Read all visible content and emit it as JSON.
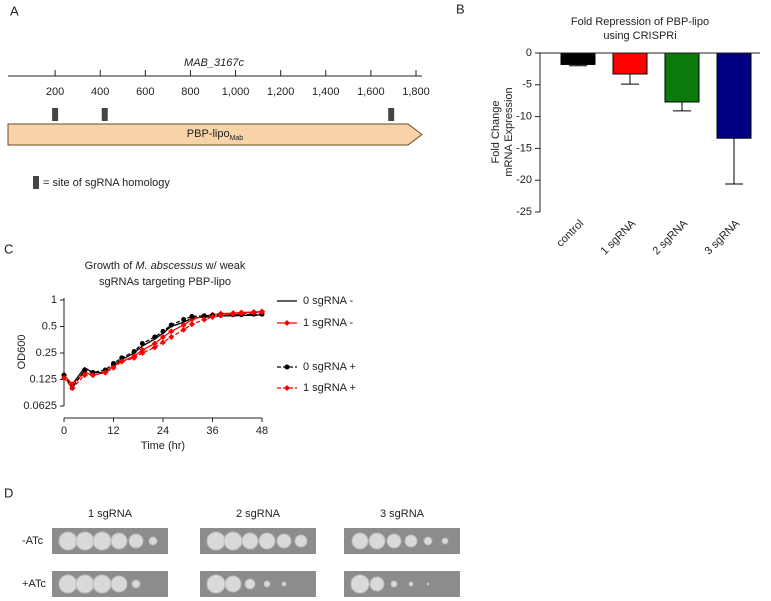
{
  "panel_labels": [
    "A",
    "B",
    "C",
    "D"
  ],
  "chart_data": [
    {
      "type": "gene_map",
      "title": "MAB_3167c",
      "xlim": [
        0,
        1800
      ],
      "xticks": [
        200,
        400,
        600,
        800,
        {
          "value": 1000,
          "label": "1,000"
        },
        {
          "value": 1200,
          "label": "1,200"
        },
        {
          "value": 1400,
          "label": "1,400"
        },
        {
          "value": 1600,
          "label": "1,600"
        },
        {
          "value": 1800,
          "label": "1,800"
        }
      ],
      "gene_label": "PBP-lipo",
      "gene_label_subscript": "Mab",
      "gene_color": "#f8d3a8",
      "sites": [
        200,
        420,
        1690
      ],
      "site_color": "#444",
      "legend": "= site of sgRNA homology"
    },
    {
      "type": "bar",
      "title": [
        "Fold Repression of PBP-lipo",
        "using CRISPRi"
      ],
      "y_label": [
        "Fold Change",
        "mRNA Expression"
      ],
      "categories": [
        "control",
        "1 sgRNA",
        "2 sgRNA",
        "3 sgRNA"
      ],
      "values": [
        -1.8,
        -3.3,
        -7.7,
        -13.4
      ],
      "errors": [
        0.2,
        1.6,
        1.4,
        7.2
      ],
      "colors": [
        "#000000",
        "#ff0000",
        "#0a7a0a",
        "#000080"
      ],
      "ylim": [
        -25,
        0
      ],
      "yticks": [
        0,
        -5,
        -10,
        -15,
        -20,
        -25
      ]
    },
    {
      "type": "line",
      "title_lines": [
        [
          {
            "text": "Growth of "
          },
          {
            "text": "M. abscessus",
            "italic": true
          },
          {
            "text": " w/ weak"
          }
        ],
        [
          {
            "text": "sgRNAs targeting PBP-lipo"
          }
        ]
      ],
      "x_label": "Time (hr)",
      "y_label": "OD600",
      "log_scale_y": true,
      "x": [
        0,
        2,
        5,
        7,
        10,
        12,
        14,
        17,
        19,
        22,
        24,
        26,
        29,
        31,
        34,
        36,
        38,
        41,
        43,
        46,
        48
      ],
      "xlim": [
        0,
        48
      ],
      "xticks": [
        0,
        12,
        24,
        36,
        48
      ],
      "ylim": [
        0.0625,
        1
      ],
      "yticks": [
        0.0625,
        0.125,
        0.25,
        0.5,
        1
      ],
      "series": [
        {
          "name": "0 sgRNA -",
          "color": "#000000",
          "dashed": false,
          "marker": "none",
          "values": [
            0.14,
            0.11,
            0.17,
            0.15,
            0.15,
            0.18,
            0.21,
            0.25,
            0.3,
            0.36,
            0.42,
            0.5,
            0.56,
            0.62,
            0.64,
            0.65,
            0.66,
            0.66,
            0.67,
            0.67,
            0.68
          ]
        },
        {
          "name": "1 sgRNA -",
          "color": "#ff0000",
          "dashed": false,
          "marker": "diamond",
          "values": [
            0.14,
            0.11,
            0.15,
            0.14,
            0.15,
            0.18,
            0.2,
            0.23,
            0.27,
            0.32,
            0.38,
            0.44,
            0.52,
            0.6,
            0.66,
            0.68,
            0.7,
            0.71,
            0.72,
            0.73,
            0.74
          ]
        },
        {
          "name": "0 sgRNA +",
          "color": "#000000",
          "dashed": true,
          "marker": "circle",
          "values": [
            0.14,
            0.1,
            0.16,
            0.15,
            0.16,
            0.19,
            0.22,
            0.26,
            0.32,
            0.38,
            0.44,
            0.52,
            0.6,
            0.65,
            0.66,
            0.67,
            0.67,
            0.68,
            0.68,
            0.69,
            0.69
          ]
        },
        {
          "name": "1 sgRNA +",
          "color": "#ff0000",
          "dashed": true,
          "marker": "diamond",
          "values": [
            0.13,
            0.1,
            0.14,
            0.14,
            0.15,
            0.17,
            0.2,
            0.22,
            0.25,
            0.29,
            0.33,
            0.38,
            0.46,
            0.53,
            0.6,
            0.64,
            0.67,
            0.69,
            0.7,
            0.72,
            0.73
          ]
        }
      ]
    }
  ],
  "plates": {
    "columns": [
      "1 sgRNA",
      "2 sgRNA",
      "3 sgRNA"
    ],
    "rows": [
      "-ATc",
      "+ATc"
    ]
  }
}
